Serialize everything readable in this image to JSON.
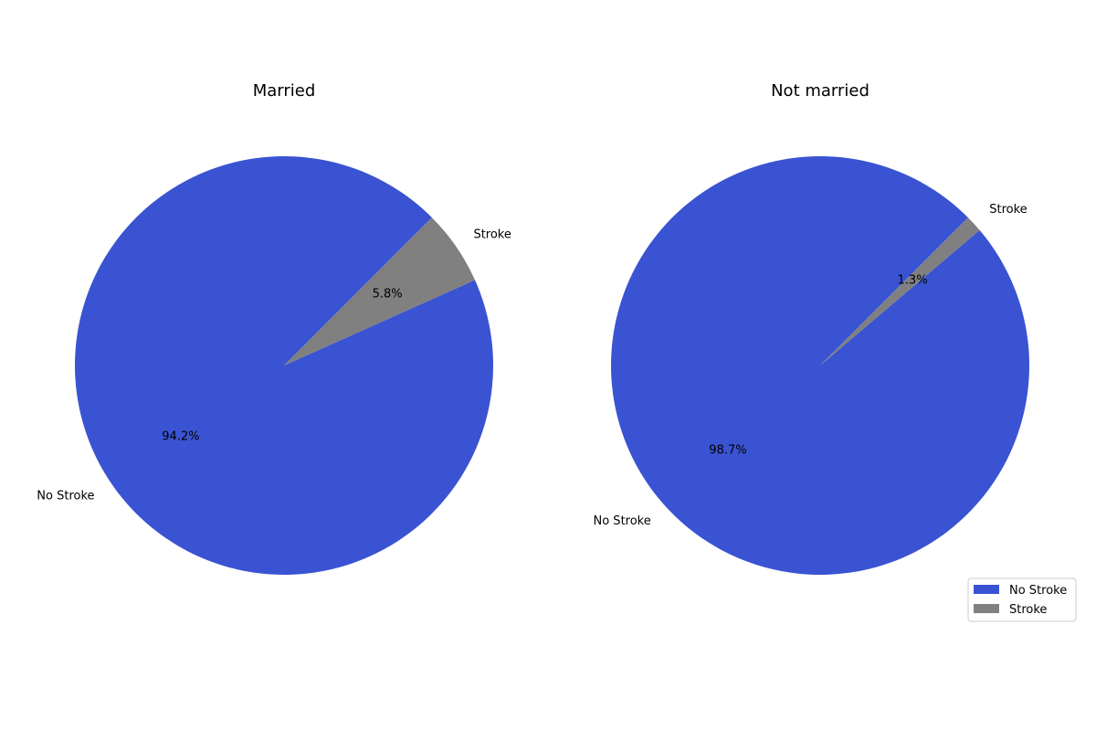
{
  "chart_data": [
    {
      "type": "pie",
      "title": "Married",
      "categories": [
        "No Stroke",
        "Stroke"
      ],
      "values": [
        94.2,
        5.8
      ],
      "percent_labels": [
        "94.2%",
        "5.8%"
      ],
      "colors": [
        "#3a53d2",
        "#808080"
      ],
      "start_angle_deg": 45
    },
    {
      "type": "pie",
      "title": "Not married",
      "categories": [
        "No Stroke",
        "Stroke"
      ],
      "values": [
        98.7,
        1.3
      ],
      "percent_labels": [
        "98.7%",
        "1.3%"
      ],
      "colors": [
        "#3a53d2",
        "#808080"
      ],
      "start_angle_deg": 45
    }
  ],
  "legend": {
    "placement": "lower-right",
    "items": [
      {
        "label": "No Stroke",
        "color": "#3a53d2"
      },
      {
        "label": "Stroke",
        "color": "#808080"
      }
    ]
  }
}
